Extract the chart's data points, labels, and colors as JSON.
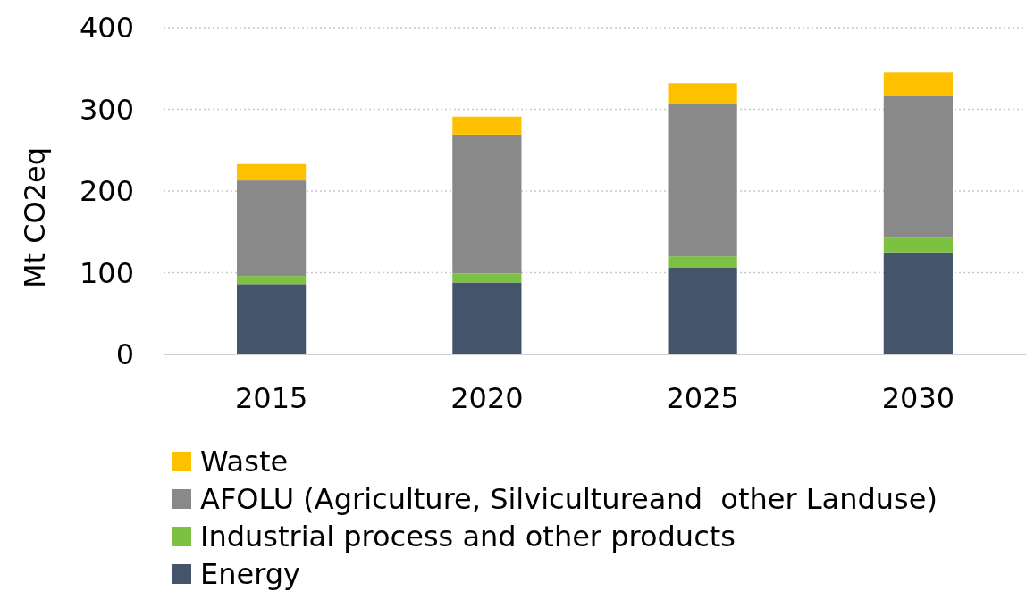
{
  "chart_data": {
    "type": "bar",
    "stacked": true,
    "ylabel": "Mt CO2eq",
    "categories": [
      "2015",
      "2020",
      "2025",
      "2030"
    ],
    "ylim": [
      0,
      400
    ],
    "yticks": [
      0,
      100,
      200,
      300,
      400
    ],
    "grid": "y",
    "legend": "bottom",
    "series": [
      {
        "name": "Energy",
        "color": "#44546a",
        "values": [
          86,
          88,
          106,
          125
        ]
      },
      {
        "name": "Industrial process and other products",
        "color": "#7cc142",
        "values": [
          10,
          11,
          14,
          18
        ]
      },
      {
        "name": "AFOLU (Agriculture, Silvicultureand  other Landuse)",
        "color": "#898989",
        "values": [
          117,
          170,
          186,
          174
        ]
      },
      {
        "name": "Waste",
        "color": "#ffc000",
        "values": [
          20,
          22,
          26,
          28
        ]
      }
    ]
  }
}
